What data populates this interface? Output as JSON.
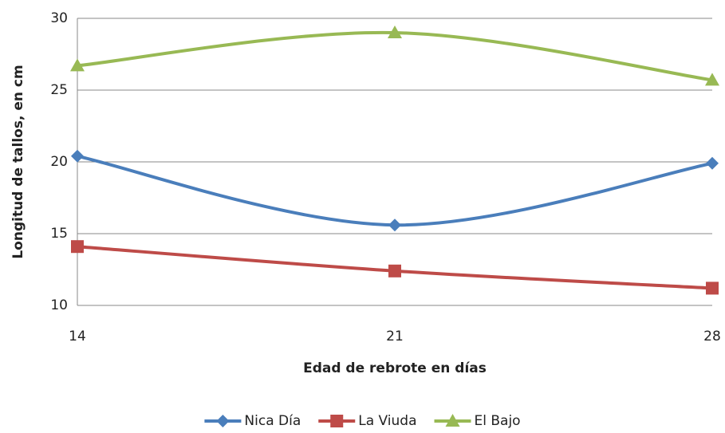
{
  "chart_data": {
    "type": "line",
    "x": [
      14,
      21,
      28
    ],
    "xlim": [
      14,
      28
    ],
    "xticks": [
      14,
      21,
      28
    ],
    "ylim": [
      10,
      30
    ],
    "yticks": [
      10,
      15,
      20,
      25,
      30
    ],
    "x_label": "Edad de rebrote en días",
    "y_label": "Longitud de tallos, en cm",
    "grid": true,
    "smooth": true,
    "legend": "bottom",
    "series": [
      {
        "name": "Nica Día",
        "color": "#4a7ebb",
        "marker": "diamond",
        "values": [
          20.4,
          15.6,
          19.9
        ]
      },
      {
        "name": "La Viuda",
        "color": "#be4b48",
        "marker": "square",
        "values": [
          14.1,
          12.4,
          11.2
        ]
      },
      {
        "name": "El Bajo",
        "color": "#98b954",
        "marker": "triangle",
        "values": [
          26.7,
          29.0,
          25.7
        ]
      }
    ]
  }
}
